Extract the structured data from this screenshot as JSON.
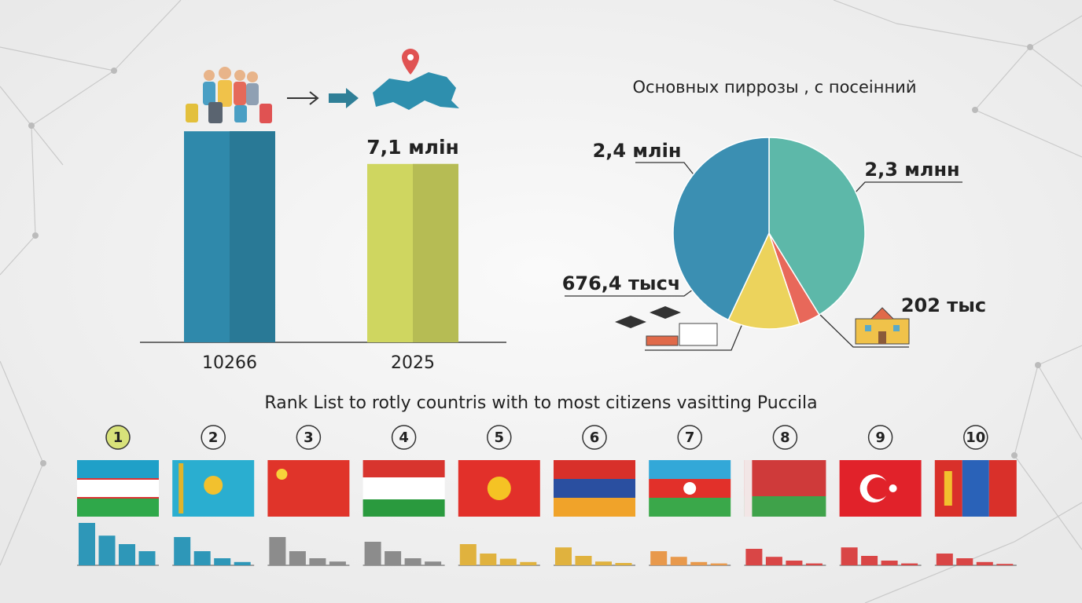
{
  "chart_data": [
    {
      "type": "bar",
      "categories": [
        "10266",
        "2025"
      ],
      "values": [
        8.4,
        7.1
      ],
      "value_labels": [
        null,
        "7,1 млін"
      ],
      "colors": [
        "#2f89ab",
        "#cfd660"
      ]
    },
    {
      "type": "pie",
      "title": "Основных пиррозы , с посеінний",
      "categories": [
        null,
        null,
        null,
        null
      ],
      "values": [
        2300000,
        202000,
        676400,
        2400000
      ],
      "value_labels": [
        "2,3 млнн",
        "202 тыс",
        "676,4 тысч",
        "2,4 млін"
      ],
      "colors": [
        "#5db8a9",
        "#e8685a",
        "#ecd35c",
        "#3b8fb2"
      ]
    },
    {
      "type": "ranked-bars",
      "title": "Rank List to rotly countris with to most citizens vasitting Puccila",
      "items": [
        {
          "rank": 1,
          "color": "#2e97b8",
          "values": [
            9,
            6.3,
            4.5,
            3
          ]
        },
        {
          "rank": 2,
          "color": "#2e97b8",
          "values": [
            6,
            3,
            1.5,
            0.7
          ]
        },
        {
          "rank": 3,
          "color": "#8c8c8c",
          "values": [
            6,
            3,
            1.5,
            0.8
          ]
        },
        {
          "rank": 4,
          "color": "#8c8c8c",
          "values": [
            5,
            3,
            1.5,
            0.8
          ]
        },
        {
          "rank": 5,
          "color": "#e0b23e",
          "values": [
            4.5,
            2.5,
            1.4,
            0.7
          ]
        },
        {
          "rank": 6,
          "color": "#e0b23e",
          "values": [
            3.8,
            2,
            0.8,
            0.5
          ]
        },
        {
          "rank": 7,
          "color": "#e8994c",
          "values": [
            3,
            1.8,
            0.7,
            0.4
          ]
        },
        {
          "rank": 8,
          "color": "#d94646",
          "values": [
            3.5,
            1.8,
            1,
            0.4
          ]
        },
        {
          "rank": 9,
          "color": "#d94646",
          "values": [
            3.8,
            2,
            1,
            0.4
          ]
        },
        {
          "rank": 10,
          "color": "#d94646",
          "values": [
            2.5,
            1.5,
            0.7,
            0.3
          ]
        }
      ]
    }
  ]
}
